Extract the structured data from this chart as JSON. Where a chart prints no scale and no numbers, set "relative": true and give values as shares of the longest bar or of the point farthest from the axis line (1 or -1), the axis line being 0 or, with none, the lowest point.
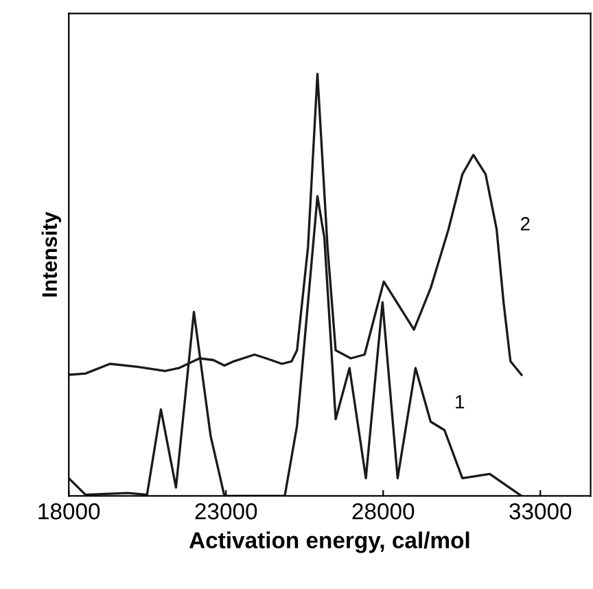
{
  "chart_data": {
    "type": "line",
    "relative": true,
    "xlabel": "Activation energy, cal/mol",
    "ylabel": "Intensity",
    "x": [
      18000,
      18530,
      19880,
      20490,
      20930,
      21410,
      21980,
      22510,
      22950,
      24870,
      25260,
      25560,
      25910,
      26130,
      26490,
      26930,
      27450,
      27980,
      28460,
      29030,
      29510,
      29950,
      30520,
      31390,
      32400
    ],
    "xlim": [
      18000,
      34600
    ],
    "xticks": [
      18000,
      23000,
      28000,
      33000
    ],
    "grid": false,
    "legend": false,
    "line_style": "solid",
    "marker": "none",
    "series": [
      {
        "name": "1",
        "color": "#1a1a1a",
        "values": [
          0.042,
          0.003,
          0.007,
          0.003,
          0.205,
          0.02,
          0.436,
          0.143,
          0,
          0,
          0.166,
          0.417,
          0.71,
          0.612,
          0.182,
          0.303,
          0.042,
          0.459,
          0.042,
          0.303,
          0.176,
          0.156,
          0.042,
          0.052,
          0
        ]
      },
      {
        "name": "2",
        "color": "#1a1a1a",
        "x": [
          18000,
          18530,
          19310,
          20190,
          21060,
          21500,
          22160,
          22600,
          22950,
          23250,
          23910,
          24440,
          24780,
          25090,
          25260,
          25610,
          25910,
          26230,
          26490,
          26970,
          27410,
          28020,
          28980,
          29510,
          30080,
          30520,
          30870,
          31260,
          31610,
          31830,
          32050,
          32400
        ],
        "values": [
          0.287,
          0.29,
          0.313,
          0.306,
          0.296,
          0.303,
          0.326,
          0.322,
          0.309,
          0.319,
          0.335,
          0.322,
          0.313,
          0.319,
          0.345,
          0.59,
          1,
          0.59,
          0.345,
          0.326,
          0.335,
          0.508,
          0.394,
          0.492,
          0.632,
          0.762,
          0.808,
          0.762,
          0.632,
          0.459,
          0.319,
          0.287
        ]
      }
    ]
  }
}
